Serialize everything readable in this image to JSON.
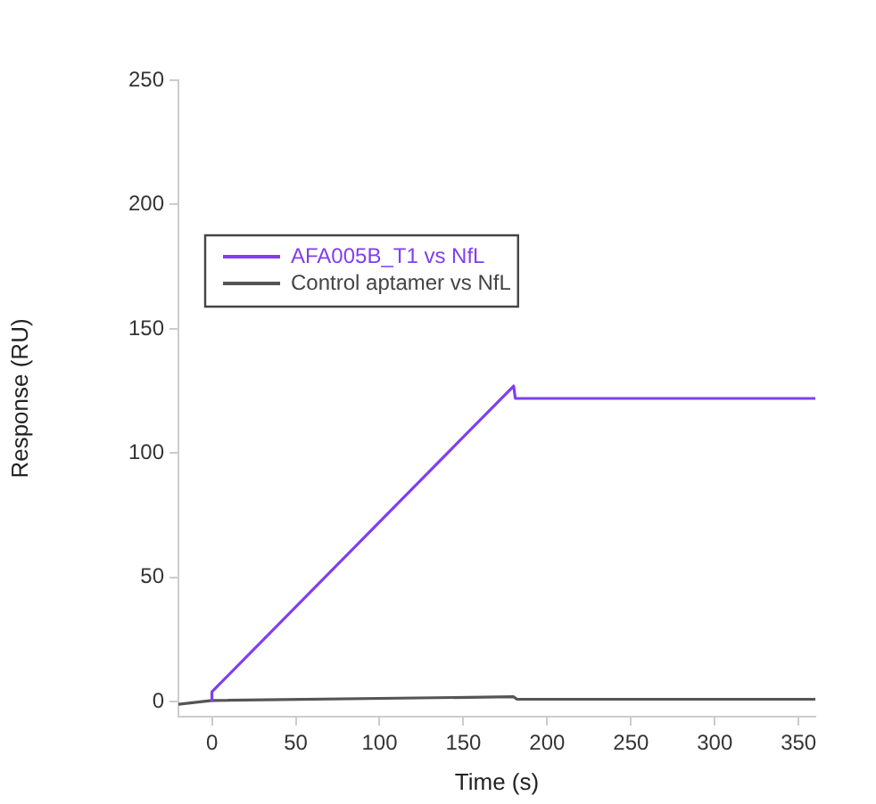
{
  "chart_data": {
    "type": "line",
    "xlabel": "Time (s)",
    "ylabel": "Response (RU)",
    "xlim": [
      -20,
      360
    ],
    "xticks": [
      0,
      50,
      100,
      150,
      200,
      250,
      300,
      350
    ],
    "ylim": [
      -6,
      250
    ],
    "yticks": [
      0,
      50,
      100,
      150,
      200,
      250
    ],
    "grid": false,
    "legend": "top left",
    "marker": "none",
    "line_style": "solid",
    "series": [
      {
        "name": "AFA005B_T1 vs NfL",
        "color": "#7f3ff0",
        "x": [
          0,
          0,
          180,
          181,
          360
        ],
        "values": [
          0,
          4,
          127,
          122,
          122
        ]
      },
      {
        "name": "Control aptamer vs NfL",
        "color": "#555555",
        "x": [
          -20,
          0,
          180,
          182,
          360
        ],
        "values": [
          -1,
          0.5,
          2,
          1,
          1
        ]
      }
    ]
  }
}
